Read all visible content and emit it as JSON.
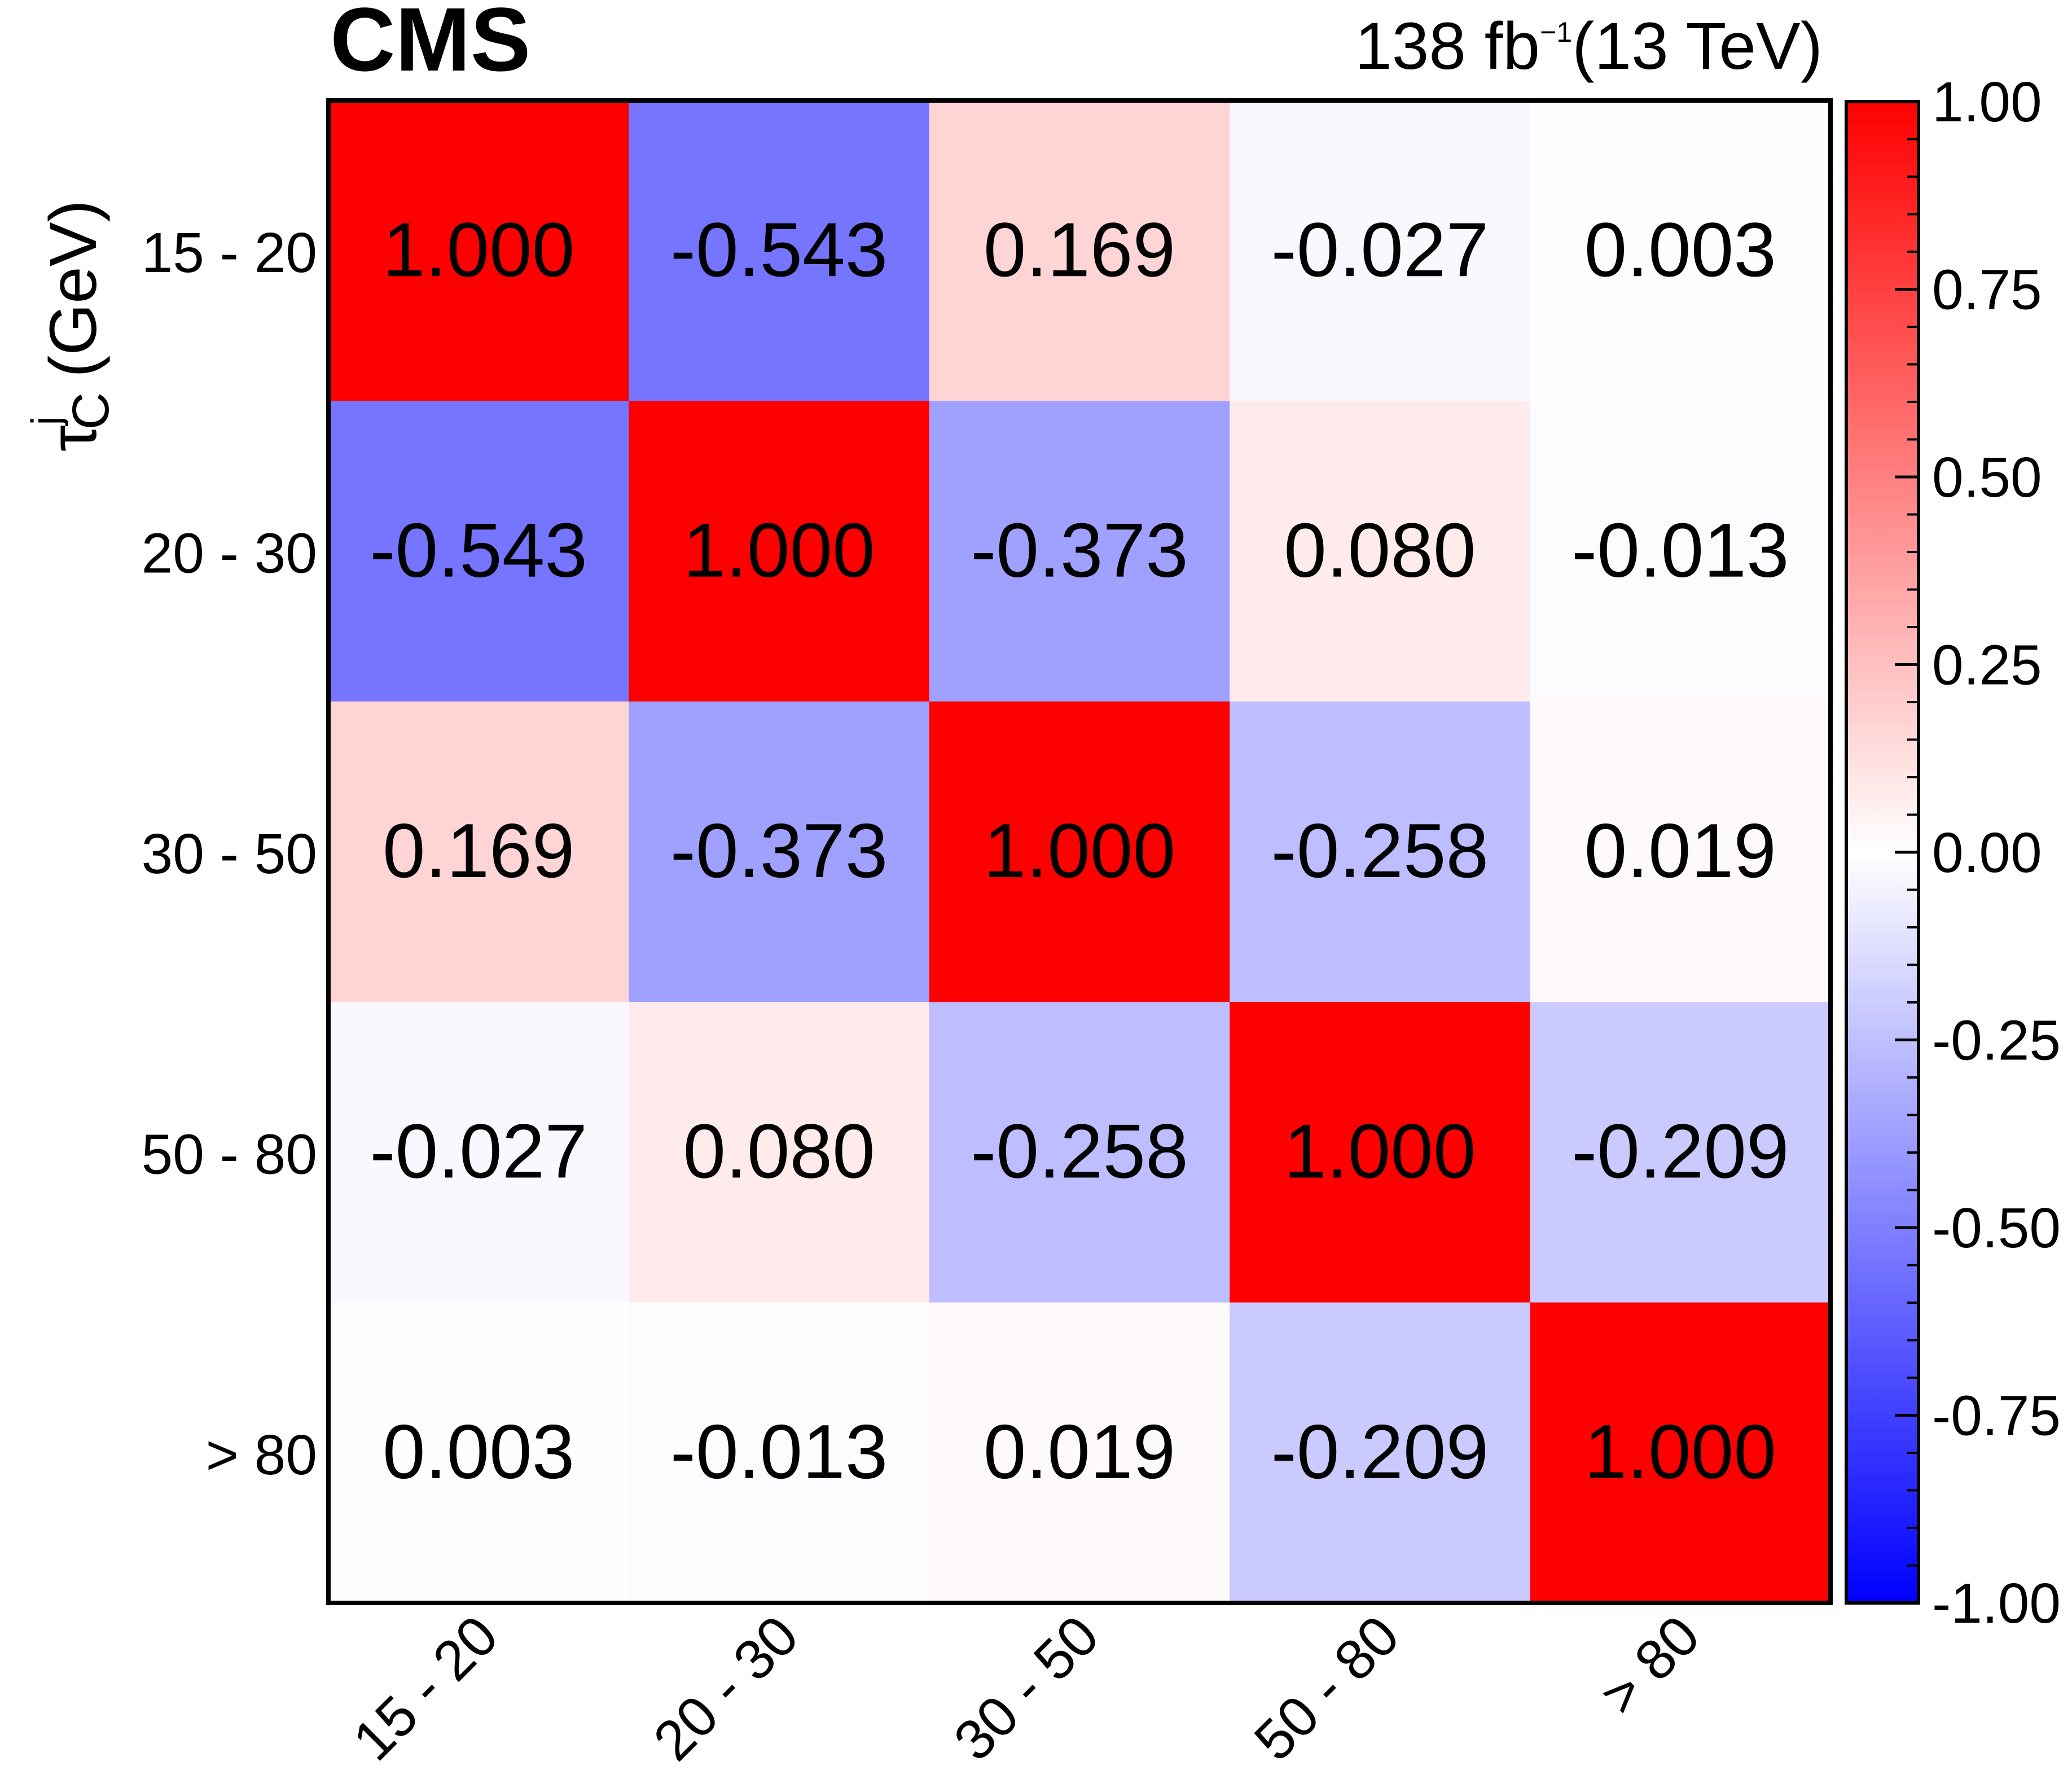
{
  "chart_data": {
    "type": "heatmap",
    "experiment_label": "CMS",
    "lumi_label": "138 fb",
    "lumi_exponent": "−1",
    "energy_label": "(13 TeV)",
    "ylabel_symbol": "τ",
    "ylabel_superscript": "j",
    "ylabel_subscript": "C",
    "ylabel_unit": "(GeV)",
    "categories": [
      "15 - 20",
      "20 - 30",
      "30 - 50",
      "50 - 80",
      "> 80"
    ],
    "matrix": [
      [
        1.0,
        -0.543,
        0.169,
        -0.027,
        0.003
      ],
      [
        -0.543,
        1.0,
        -0.373,
        0.08,
        -0.013
      ],
      [
        0.169,
        -0.373,
        1.0,
        -0.258,
        0.019
      ],
      [
        -0.027,
        0.08,
        -0.258,
        1.0,
        -0.209
      ],
      [
        0.003,
        -0.013,
        0.019,
        -0.209,
        1.0
      ]
    ],
    "cell_labels": [
      [
        "1.000",
        "-0.543",
        "0.169",
        "-0.027",
        "0.003"
      ],
      [
        "-0.543",
        "1.000",
        "-0.373",
        "0.080",
        "-0.013"
      ],
      [
        "0.169",
        "-0.373",
        "1.000",
        "-0.258",
        "0.019"
      ],
      [
        "-0.027",
        "0.080",
        "-0.258",
        "1.000",
        "-0.209"
      ],
      [
        "0.003",
        "-0.013",
        "0.019",
        "-0.209",
        "1.000"
      ]
    ],
    "zlim": [
      -1.0,
      1.0
    ],
    "colorbar_ticks": [
      "1.00",
      "0.75",
      "0.50",
      "0.25",
      "0.00",
      "-0.25",
      "-0.50",
      "-0.75",
      "-1.00"
    ],
    "colorbar_tick_values": [
      1.0,
      0.75,
      0.5,
      0.25,
      0.0,
      -0.25,
      -0.5,
      -0.75,
      -1.0
    ],
    "colormap": {
      "low": "#0000ff",
      "mid": "#ffffff",
      "high": "#ff0000"
    }
  }
}
